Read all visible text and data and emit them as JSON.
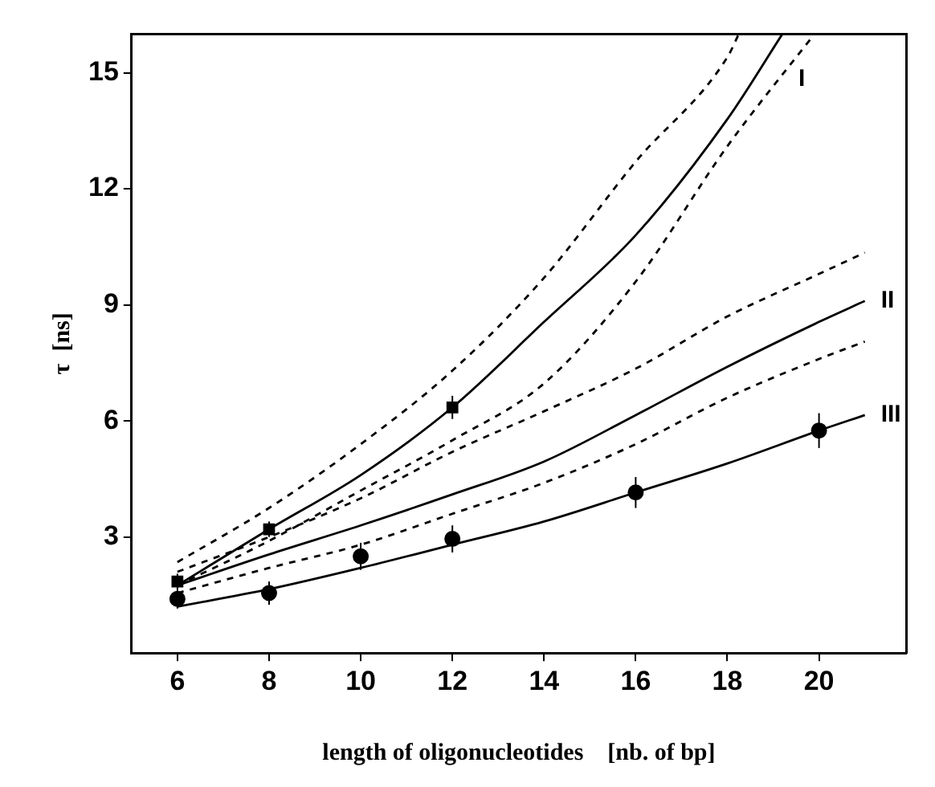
{
  "chart_data": {
    "type": "scatter",
    "xlabel": "length of oligonucleotides    [nb. of bp]",
    "ylabel": "τ  [ns]",
    "xlim": [
      5,
      21.9
    ],
    "ylim": [
      0,
      16
    ],
    "xticks": [
      6,
      8,
      10,
      12,
      14,
      16,
      18,
      20
    ],
    "yticks": [
      3,
      6,
      9,
      12,
      15
    ],
    "grid": false,
    "legend": false,
    "series": [
      {
        "type": "scatter",
        "marker": "square",
        "color": "#000000",
        "x": [
          6,
          8,
          12
        ],
        "values": [
          1.85,
          3.2,
          6.35
        ],
        "errors": [
          0.2,
          0.2,
          0.3
        ]
      },
      {
        "type": "scatter",
        "marker": "circle",
        "color": "#000000",
        "x": [
          6,
          8,
          12
        ],
        "values": [
          1.4,
          1.55,
          2.95
        ],
        "errors": [
          0.25,
          0.3,
          0.35
        ]
      },
      {
        "type": "scatter",
        "marker": "circle",
        "color": "#000000",
        "x": [
          10,
          16,
          20
        ],
        "values": [
          2.5,
          4.15,
          5.75
        ],
        "errors": [
          0.35,
          0.4,
          0.45
        ]
      },
      {
        "type": "line",
        "name": "I",
        "line_style": "solid",
        "marker": "none",
        "color": "#000000",
        "x": [
          6,
          8,
          10,
          12,
          14,
          16,
          18,
          19.2
        ],
        "values": [
          1.75,
          3.2,
          4.6,
          6.35,
          8.56,
          10.8,
          13.8,
          16
        ]
      },
      {
        "type": "line",
        "line_style": "dashed",
        "marker": "none",
        "color": "#000000",
        "x": [
          6,
          8,
          10,
          12,
          14,
          16,
          18,
          18.25
        ],
        "values": [
          2.35,
          3.75,
          5.4,
          7.3,
          9.7,
          12.7,
          15.4,
          16
        ]
      },
      {
        "type": "line",
        "line_style": "dashed",
        "marker": "none",
        "color": "#000000",
        "x": [
          6,
          8,
          10,
          12,
          14,
          16,
          18,
          19.9
        ],
        "values": [
          1.75,
          2.9,
          4.2,
          5.5,
          6.97,
          9.6,
          13.1,
          16
        ]
      },
      {
        "type": "line",
        "name": "II",
        "line_style": "solid",
        "marker": "none",
        "color": "#000000",
        "x": [
          6,
          8,
          10,
          12,
          14,
          16,
          18,
          20,
          21
        ],
        "values": [
          1.75,
          2.55,
          3.3,
          4.1,
          4.95,
          6.15,
          7.4,
          8.56,
          9.1
        ]
      },
      {
        "type": "line",
        "line_style": "dashed",
        "marker": "none",
        "color": "#000000",
        "x": [
          6,
          8,
          10,
          12,
          14,
          16,
          18,
          20,
          21
        ],
        "values": [
          2.1,
          3.0,
          4.0,
          5.2,
          6.25,
          7.35,
          8.7,
          9.8,
          10.35
        ]
      },
      {
        "type": "line",
        "line_style": "dashed",
        "marker": "none",
        "color": "#000000",
        "x": [
          6,
          8,
          10,
          12,
          14,
          16,
          18,
          20,
          21
        ],
        "values": [
          1.55,
          2.2,
          2.8,
          3.6,
          4.4,
          5.4,
          6.6,
          7.6,
          8.05
        ]
      },
      {
        "type": "line",
        "name": "III",
        "line_style": "solid",
        "marker": "none",
        "color": "#000000",
        "x": [
          6,
          8,
          10,
          12,
          14,
          16,
          18,
          20,
          21
        ],
        "values": [
          1.2,
          1.65,
          2.2,
          2.8,
          3.4,
          4.15,
          4.9,
          5.75,
          6.15
        ]
      }
    ]
  }
}
